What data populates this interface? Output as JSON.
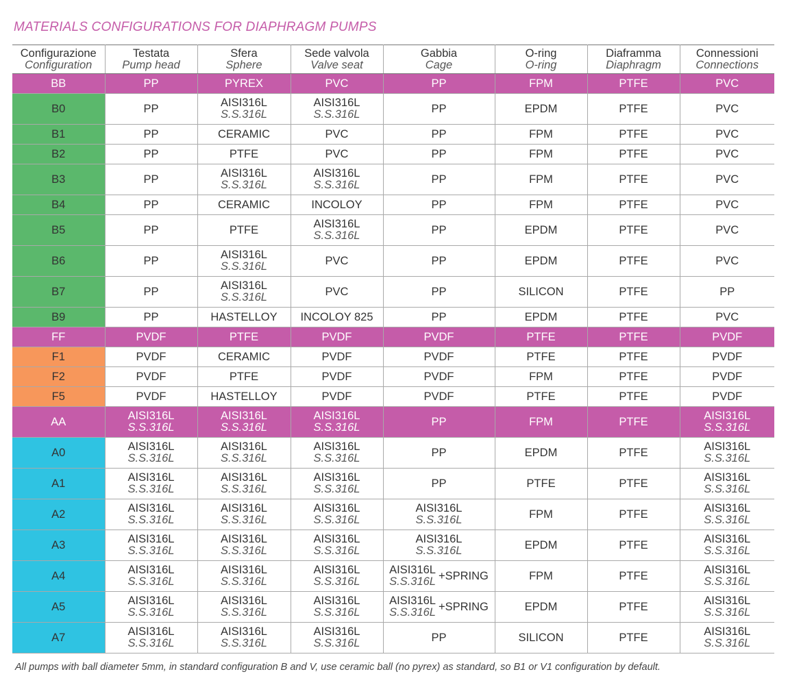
{
  "title": "MATERIALS CONFIGURATIONS FOR DIAPHRAGM PUMPS",
  "table": {
    "header": [
      {
        "it": "Configurazione",
        "en": "Configuration"
      },
      {
        "it": "Testata",
        "en": "Pump head"
      },
      {
        "it": "Sfera",
        "en": "Sphere"
      },
      {
        "it": "Sede valvola",
        "en": "Valve seat"
      },
      {
        "it": "Gabbia",
        "en": "Cage"
      },
      {
        "it": "O-ring",
        "en": "O-ring"
      },
      {
        "it": "Diaframma",
        "en": "Diaphragm"
      },
      {
        "it": "Connessioni",
        "en": "Connections"
      }
    ],
    "rows": [
      {
        "config": "BB",
        "color": "#c55ca9",
        "full_row": true,
        "cells": [
          "PP",
          "PYREX",
          "PVC",
          "PP",
          "FPM",
          "PTFE",
          "PVC"
        ]
      },
      {
        "config": "B0",
        "color": "#5bb86c",
        "cells": [
          "PP",
          {
            "line1": "AISI316L",
            "line2": "S.S.316L"
          },
          {
            "line1": "AISI316L",
            "line2": "S.S.316L"
          },
          "PP",
          "EPDM",
          "PTFE",
          "PVC"
        ]
      },
      {
        "config": "B1",
        "color": "#5bb86c",
        "cells": [
          "PP",
          "CERAMIC",
          "PVC",
          "PP",
          "FPM",
          "PTFE",
          "PVC"
        ]
      },
      {
        "config": "B2",
        "color": "#5bb86c",
        "cells": [
          "PP",
          "PTFE",
          "PVC",
          "PP",
          "FPM",
          "PTFE",
          "PVC"
        ]
      },
      {
        "config": "B3",
        "color": "#5bb86c",
        "cells": [
          "PP",
          {
            "line1": "AISI316L",
            "line2": "S.S.316L"
          },
          {
            "line1": "AISI316L",
            "line2": "S.S.316L"
          },
          "PP",
          "FPM",
          "PTFE",
          "PVC"
        ]
      },
      {
        "config": "B4",
        "color": "#5bb86c",
        "cells": [
          "PP",
          "CERAMIC",
          "INCOLOY",
          "PP",
          "FPM",
          "PTFE",
          "PVC"
        ]
      },
      {
        "config": "B5",
        "color": "#5bb86c",
        "cells": [
          "PP",
          "PTFE",
          {
            "line1": "AISI316L",
            "line2": "S.S.316L"
          },
          "PP",
          "EPDM",
          "PTFE",
          "PVC"
        ]
      },
      {
        "config": "B6",
        "color": "#5bb86c",
        "cells": [
          "PP",
          {
            "line1": "AISI316L",
            "line2": "S.S.316L"
          },
          "PVC",
          "PP",
          "EPDM",
          "PTFE",
          "PVC"
        ]
      },
      {
        "config": "B7",
        "color": "#5bb86c",
        "cells": [
          "PP",
          {
            "line1": "AISI316L",
            "line2": "S.S.316L"
          },
          "PVC",
          "PP",
          "SILICON",
          "PTFE",
          "PP"
        ]
      },
      {
        "config": "B9",
        "color": "#5bb86c",
        "cells": [
          "PP",
          "HASTELLOY",
          "INCOLOY 825",
          "PP",
          "EPDM",
          "PTFE",
          "PVC"
        ]
      },
      {
        "config": "FF",
        "color": "#c55ca9",
        "full_row": true,
        "cells": [
          "PVDF",
          "PTFE",
          "PVDF",
          "PVDF",
          "PTFE",
          "PTFE",
          "PVDF"
        ]
      },
      {
        "config": "F1",
        "color": "#f7975b",
        "cells": [
          "PVDF",
          "CERAMIC",
          "PVDF",
          "PVDF",
          "PTFE",
          "PTFE",
          "PVDF"
        ]
      },
      {
        "config": "F2",
        "color": "#f7975b",
        "cells": [
          "PVDF",
          "PTFE",
          "PVDF",
          "PVDF",
          "FPM",
          "PTFE",
          "PVDF"
        ]
      },
      {
        "config": "F5",
        "color": "#f7975b",
        "cells": [
          "PVDF",
          "HASTELLOY",
          "PVDF",
          "PVDF",
          "PTFE",
          "PTFE",
          "PVDF"
        ]
      },
      {
        "config": "AA",
        "color": "#c55ca9",
        "full_row": true,
        "cells": [
          {
            "line1": "AISI316L",
            "line2": "S.S.316L"
          },
          {
            "line1": "AISI316L",
            "line2": "S.S.316L"
          },
          {
            "line1": "AISI316L",
            "line2": "S.S.316L"
          },
          "PP",
          "FPM",
          "PTFE",
          {
            "line1": "AISI316L",
            "line2": "S.S.316L"
          }
        ]
      },
      {
        "config": "A0",
        "color": "#2fc3e2",
        "cells": [
          {
            "line1": "AISI316L",
            "line2": "S.S.316L"
          },
          {
            "line1": "AISI316L",
            "line2": "S.S.316L"
          },
          {
            "line1": "AISI316L",
            "line2": "S.S.316L"
          },
          "PP",
          "EPDM",
          "PTFE",
          {
            "line1": "AISI316L",
            "line2": "S.S.316L"
          }
        ]
      },
      {
        "config": "A1",
        "color": "#2fc3e2",
        "cells": [
          {
            "line1": "AISI316L",
            "line2": "S.S.316L"
          },
          {
            "line1": "AISI316L",
            "line2": "S.S.316L"
          },
          {
            "line1": "AISI316L",
            "line2": "S.S.316L"
          },
          "PP",
          "PTFE",
          "PTFE",
          {
            "line1": "AISI316L",
            "line2": "S.S.316L"
          }
        ]
      },
      {
        "config": "A2",
        "color": "#2fc3e2",
        "cells": [
          {
            "line1": "AISI316L",
            "line2": "S.S.316L"
          },
          {
            "line1": "AISI316L",
            "line2": "S.S.316L"
          },
          {
            "line1": "AISI316L",
            "line2": "S.S.316L"
          },
          {
            "line1": "AISI316L",
            "line2": "S.S.316L"
          },
          "FPM",
          "PTFE",
          {
            "line1": "AISI316L",
            "line2": "S.S.316L"
          }
        ]
      },
      {
        "config": "A3",
        "color": "#2fc3e2",
        "cells": [
          {
            "line1": "AISI316L",
            "line2": "S.S.316L"
          },
          {
            "line1": "AISI316L",
            "line2": "S.S.316L"
          },
          {
            "line1": "AISI316L",
            "line2": "S.S.316L"
          },
          {
            "line1": "AISI316L",
            "line2": "S.S.316L"
          },
          "EPDM",
          "PTFE",
          {
            "line1": "AISI316L",
            "line2": "S.S.316L"
          }
        ]
      },
      {
        "config": "A4",
        "color": "#2fc3e2",
        "cells": [
          {
            "line1": "AISI316L",
            "line2": "S.S.316L"
          },
          {
            "line1": "AISI316L",
            "line2": "S.S.316L"
          },
          {
            "line1": "AISI316L",
            "line2": "S.S.316L"
          },
          {
            "line1": "AISI316L",
            "line2": "S.S.316L",
            "extra": "+SPRING"
          },
          "FPM",
          "PTFE",
          {
            "line1": "AISI316L",
            "line2": "S.S.316L"
          }
        ]
      },
      {
        "config": "A5",
        "color": "#2fc3e2",
        "cells": [
          {
            "line1": "AISI316L",
            "line2": "S.S.316L"
          },
          {
            "line1": "AISI316L",
            "line2": "S.S.316L"
          },
          {
            "line1": "AISI316L",
            "line2": "S.S.316L"
          },
          {
            "line1": "AISI316L",
            "line2": "S.S.316L",
            "extra": "+SPRING"
          },
          "EPDM",
          "PTFE",
          {
            "line1": "AISI316L",
            "line2": "S.S.316L"
          }
        ]
      },
      {
        "config": "A7",
        "color": "#2fc3e2",
        "cells": [
          {
            "line1": "AISI316L",
            "line2": "S.S.316L"
          },
          {
            "line1": "AISI316L",
            "line2": "S.S.316L"
          },
          {
            "line1": "AISI316L",
            "line2": "S.S.316L"
          },
          "PP",
          "SILICON",
          "PTFE",
          {
            "line1": "AISI316L",
            "line2": "S.S.316L"
          }
        ]
      }
    ]
  },
  "footnote": "All pumps with ball diameter 5mm, in standard configuration B and V, use ceramic ball (no pyrex) as standard, so B1 or V1 configuration by default."
}
